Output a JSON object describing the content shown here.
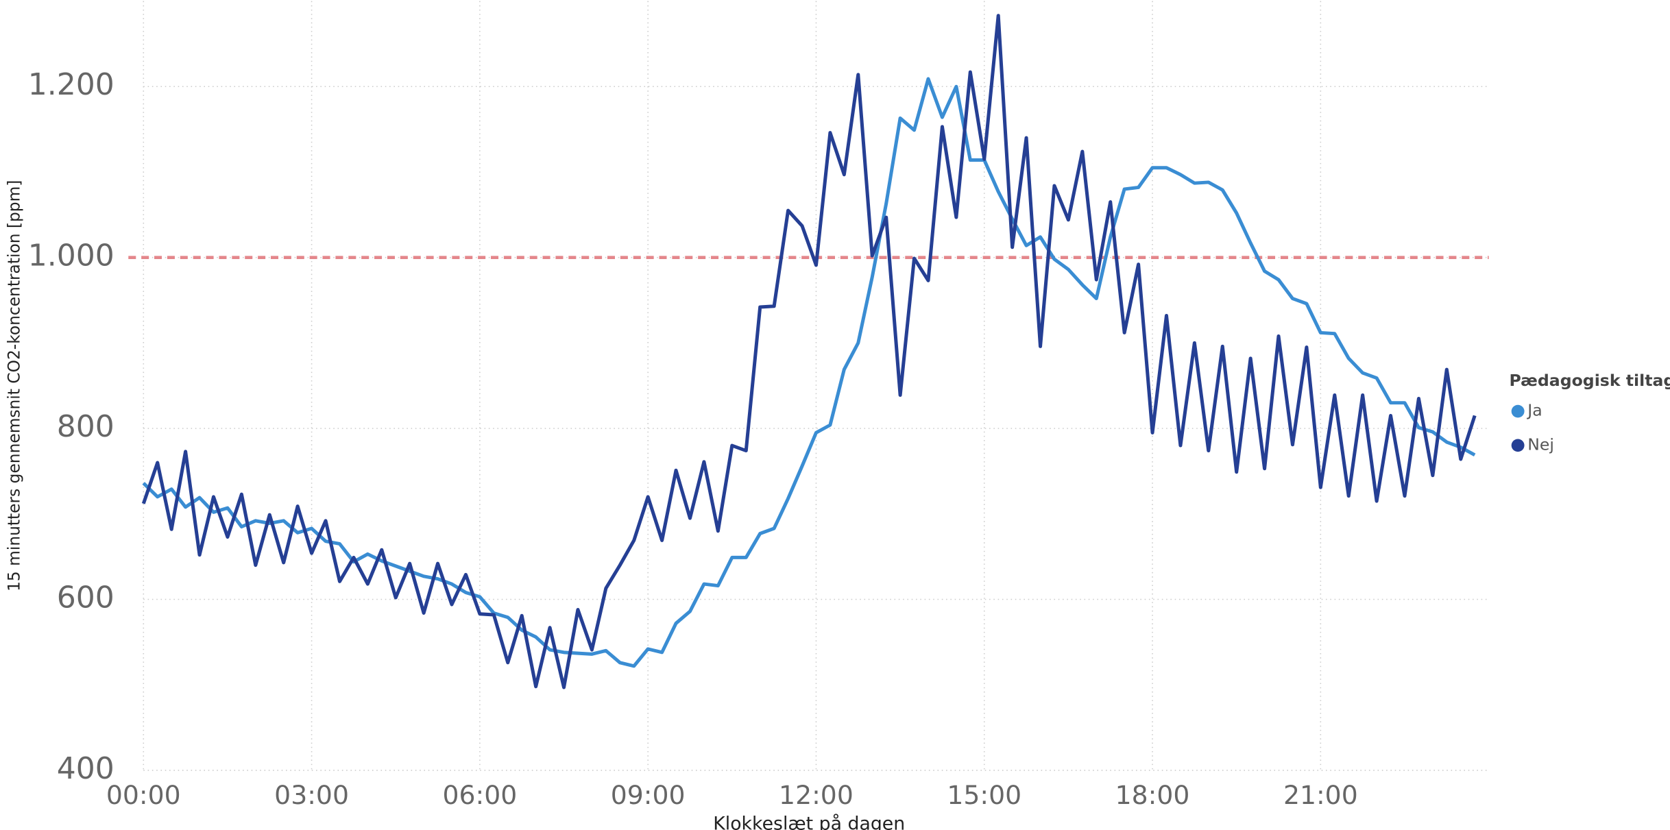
{
  "chart_data": {
    "type": "line",
    "y_label": "15 minutters gennemsnit CO2-koncentration [ppm]",
    "x_label": "Klokkeslæt på dagen",
    "legend_title": "Pædagogisk tiltag",
    "legend_position": "right",
    "grid": true,
    "reference_y": 1000,
    "reference_color": "#e4868b",
    "xlim": [
      0,
      24
    ],
    "xticks": [
      {
        "value": 0,
        "label": "00:00"
      },
      {
        "value": 3,
        "label": "03:00"
      },
      {
        "value": 6,
        "label": "06:00"
      },
      {
        "value": 9,
        "label": "09:00"
      },
      {
        "value": 12,
        "label": "12:00"
      },
      {
        "value": 15,
        "label": "15:00"
      },
      {
        "value": 18,
        "label": "18:00"
      },
      {
        "value": 21,
        "label": "21:00"
      }
    ],
    "ylim": [
      400,
      1300
    ],
    "yticks": [
      400,
      600,
      800,
      {
        "value": 1000,
        "label": "1.000"
      },
      {
        "value": 1200,
        "label": "1.200"
      }
    ],
    "x": [
      0,
      0.25,
      0.5,
      0.75,
      1,
      1.25,
      1.5,
      1.75,
      2,
      2.25,
      2.5,
      2.75,
      3,
      3.25,
      3.5,
      3.75,
      4,
      4.25,
      4.5,
      4.75,
      5,
      5.25,
      5.5,
      5.75,
      6,
      6.25,
      6.5,
      6.75,
      7,
      7.25,
      7.5,
      7.75,
      8,
      8.25,
      8.5,
      8.75,
      9,
      9.25,
      9.5,
      9.75,
      10,
      10.25,
      10.5,
      10.75,
      11,
      11.25,
      11.5,
      11.75,
      12,
      12.25,
      12.5,
      12.75,
      13,
      13.25,
      13.5,
      13.75,
      14,
      14.25,
      14.5,
      14.75,
      15,
      15.25,
      15.5,
      15.75,
      16,
      16.25,
      16.5,
      16.75,
      17,
      17.25,
      17.5,
      17.75,
      18,
      18.25,
      18.5,
      18.75,
      19,
      19.25,
      19.5,
      19.75,
      20,
      20.25,
      20.5,
      20.75,
      21,
      21.25,
      21.5,
      21.75,
      22,
      22.25,
      22.5,
      22.75,
      23,
      23.25,
      23.5,
      23.75
    ],
    "series": [
      {
        "name": "Ja",
        "color": "#3a8dd3",
        "values": [
          736,
          720,
          729,
          708,
          719,
          702,
          707,
          685,
          692,
          689,
          692,
          678,
          683,
          668,
          665,
          644,
          653,
          645,
          639,
          633,
          627,
          624,
          618,
          608,
          603,
          584,
          579,
          564,
          556,
          541,
          538,
          537,
          536,
          540,
          526,
          522,
          542,
          538,
          572,
          586,
          618,
          616,
          649,
          649,
          677,
          683,
          718,
          756,
          795,
          804,
          869,
          900,
          977,
          1063,
          1163,
          1149,
          1209,
          1164,
          1200,
          1114,
          1114,
          1077,
          1045,
          1014,
          1024,
          998,
          986,
          968,
          952,
          1024,
          1080,
          1082,
          1105,
          1105,
          1097,
          1087,
          1088,
          1079,
          1052,
          1017,
          984,
          974,
          952,
          946,
          912,
          911,
          882,
          865,
          859,
          830,
          830,
          801,
          796,
          784,
          778,
          769
        ]
      },
      {
        "name": "Nej",
        "color": "#253f94",
        "values": [
          712,
          760,
          682,
          773,
          652,
          720,
          673,
          723,
          640,
          699,
          643,
          709,
          654,
          692,
          621,
          649,
          618,
          658,
          602,
          642,
          584,
          642,
          594,
          629,
          583,
          582,
          526,
          581,
          498,
          567,
          497,
          588,
          541,
          613,
          640,
          669,
          720,
          669,
          751,
          695,
          761,
          680,
          780,
          774,
          942,
          943,
          1055,
          1037,
          991,
          1146,
          1097,
          1214,
          1002,
          1047,
          839,
          999,
          973,
          1153,
          1047,
          1217,
          1115,
          1283,
          1012,
          1140,
          896,
          1084,
          1044,
          1124,
          974,
          1065,
          912,
          992,
          795,
          932,
          780,
          900,
          774,
          896,
          749,
          882,
          753,
          908,
          781,
          895,
          731,
          839,
          721,
          839,
          715,
          815,
          721,
          835,
          745,
          869,
          764,
          815
        ]
      }
    ]
  }
}
